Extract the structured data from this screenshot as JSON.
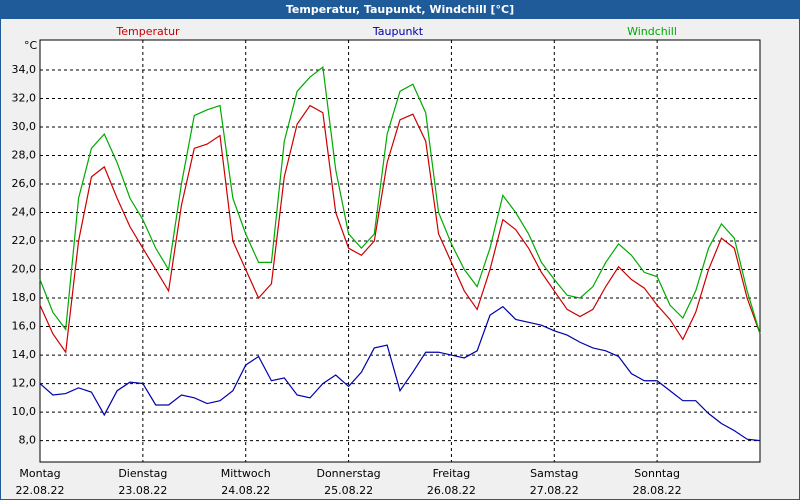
{
  "chart_data": {
    "type": "line",
    "title": "Temperatur, Taupunkt, Windchill [°C]",
    "y_label": "°C",
    "x": [
      0,
      0.125,
      0.25,
      0.375,
      0.5,
      0.625,
      0.75,
      0.875,
      1,
      1.125,
      1.25,
      1.375,
      1.5,
      1.625,
      1.75,
      1.875,
      2,
      2.125,
      2.25,
      2.375,
      2.5,
      2.625,
      2.75,
      2.875,
      3,
      3.125,
      3.25,
      3.375,
      3.5,
      3.625,
      3.75,
      3.875,
      4,
      4.125,
      4.25,
      4.375,
      4.5,
      4.625,
      4.75,
      4.875,
      5,
      5.125,
      5.25,
      5.375,
      5.5,
      5.625,
      5.75,
      5.875,
      6,
      6.125,
      6.25,
      6.375,
      6.5,
      6.625,
      6.75,
      6.875,
      7
    ],
    "series": [
      {
        "name": "Temperatur",
        "color": "#cc0000",
        "values": [
          17.5,
          15.5,
          14.2,
          22,
          26.5,
          27.2,
          25,
          23,
          21.5,
          20,
          18.5,
          24.5,
          28.5,
          28.8,
          29.4,
          22,
          20,
          18,
          19,
          26.5,
          30.2,
          31.5,
          31,
          24,
          21.5,
          21,
          22,
          27.5,
          30.5,
          30.9,
          29,
          22.5,
          20.5,
          18.5,
          17.2,
          20,
          23.5,
          22.8,
          21.5,
          19.8,
          18.5,
          17.2,
          16.7,
          17.2,
          18.8,
          20.2,
          19.3,
          18.7,
          17.5,
          16.5,
          15.1,
          17,
          20,
          22.2,
          21.5,
          18,
          15.5
        ]
      },
      {
        "name": "Taupunkt",
        "color": "#0000aa",
        "values": [
          12,
          11.2,
          11.3,
          11.7,
          11.4,
          9.8,
          11.5,
          12.1,
          12,
          10.5,
          10.5,
          11.2,
          11,
          10.6,
          10.8,
          11.5,
          13.3,
          13.9,
          12.2,
          12.4,
          11.2,
          11,
          12,
          12.6,
          11.8,
          12.8,
          14.5,
          14.7,
          11.5,
          12.8,
          14.2,
          14.2,
          14,
          13.8,
          14.3,
          16.8,
          17.4,
          16.5,
          16.3,
          16.1,
          15.7,
          15.4,
          14.9,
          14.5,
          14.3,
          13.9,
          12.7,
          12.2,
          12.2,
          11.5,
          10.8,
          10.8,
          9.9,
          9.2,
          8.7,
          8.1,
          8
        ]
      },
      {
        "name": "Windchill",
        "color": "#00aa00",
        "values": [
          19.3,
          17,
          15.8,
          25,
          28.5,
          29.5,
          27.5,
          25,
          23.5,
          21.5,
          20,
          26,
          30.8,
          31.2,
          31.5,
          25,
          22.5,
          20.5,
          20.5,
          29,
          32.5,
          33.5,
          34.2,
          27,
          22.5,
          21.5,
          22.5,
          29.5,
          32.5,
          33,
          31,
          24,
          21.8,
          20,
          18.8,
          21.5,
          25.2,
          24,
          22.5,
          20.5,
          19.3,
          18.2,
          18,
          18.8,
          20.5,
          21.8,
          21,
          19.8,
          19.5,
          17.5,
          16.6,
          18.5,
          21.5,
          23.2,
          22.2,
          18.5,
          15.5
        ]
      }
    ],
    "xlim": [
      0,
      7
    ],
    "xticks": [
      {
        "value": 0,
        "label": "Montag"
      },
      {
        "value": 1,
        "label": "Dienstag"
      },
      {
        "value": 2,
        "label": "Mittwoch"
      },
      {
        "value": 3,
        "label": "Donnerstag"
      },
      {
        "value": 4,
        "label": "Freitag"
      },
      {
        "value": 5,
        "label": "Samstag"
      },
      {
        "value": 6,
        "label": "Sonntag"
      }
    ],
    "xtick_dates": [
      "22.08.22",
      "23.08.22",
      "24.08.22",
      "25.08.22",
      "26.08.22",
      "27.08.22",
      "28.08.22"
    ],
    "ylim": [
      6.5,
      36.1
    ],
    "yticks": [
      {
        "value": 8,
        "label": "8,0"
      },
      {
        "value": 10,
        "label": "10,0"
      },
      {
        "value": 12,
        "label": "12,0"
      },
      {
        "value": 14,
        "label": "14,0"
      },
      {
        "value": 16,
        "label": "16,0"
      },
      {
        "value": 18,
        "label": "18,0"
      },
      {
        "value": 20,
        "label": "20,0"
      },
      {
        "value": 22,
        "label": "22,0"
      },
      {
        "value": 24,
        "label": "24,0"
      },
      {
        "value": 26,
        "label": "26,0"
      },
      {
        "value": 28,
        "label": "28,0"
      },
      {
        "value": 30,
        "label": "30,0"
      },
      {
        "value": 32,
        "label": "32,0"
      },
      {
        "value": 34,
        "label": "34,0"
      }
    ],
    "grid": true
  }
}
